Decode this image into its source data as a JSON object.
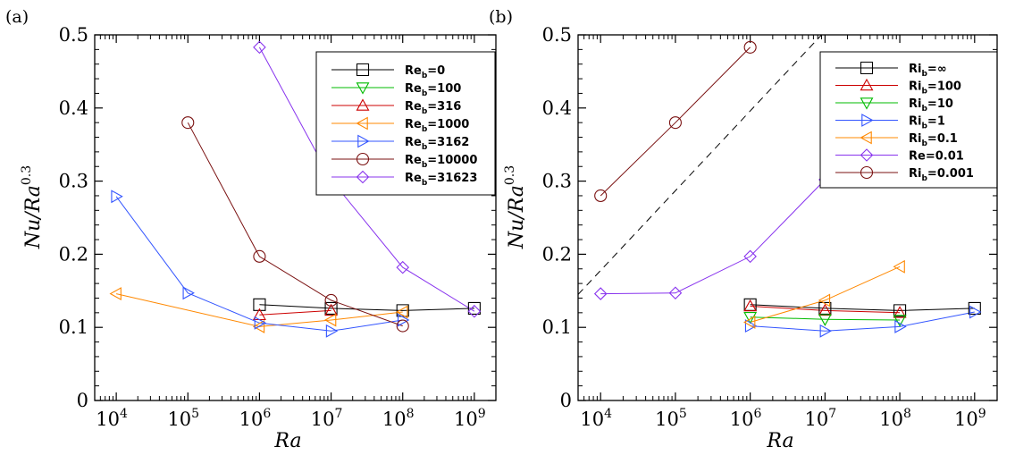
{
  "chart_data": [
    {
      "type": "line",
      "panel_label": "(a)",
      "xlabel": "Ra",
      "ylabel": {
        "base": "Nu/Ra",
        "exponent": "0.3"
      },
      "xscale": "log",
      "xlim": [
        5000,
        2000000000
      ],
      "ylim": [
        0,
        0.5
      ],
      "x_ticks": [
        {
          "base": "10",
          "exp": "4",
          "v": 10000
        },
        {
          "base": "10",
          "exp": "5",
          "v": 100000
        },
        {
          "base": "10",
          "exp": "6",
          "v": 1000000
        },
        {
          "base": "10",
          "exp": "7",
          "v": 10000000
        },
        {
          "base": "10",
          "exp": "8",
          "v": 100000000
        },
        {
          "base": "10",
          "exp": "9",
          "v": 1000000000
        }
      ],
      "y_ticks": [
        "0",
        "0.1",
        "0.2",
        "0.3",
        "0.4",
        "0.5"
      ],
      "legend_position": "top-right",
      "series": [
        {
          "name": "Re_b=0",
          "label_main": "Re",
          "label_sub": "b",
          "label_tail": "=0",
          "color": "#000000",
          "marker": "square",
          "x": [
            1000000,
            10000000,
            100000000,
            1000000000
          ],
          "y": [
            0.131,
            0.126,
            0.123,
            0.126
          ]
        },
        {
          "name": "Re_b=100",
          "label_main": "Re",
          "label_sub": "b",
          "label_tail": "=100",
          "color": "#00bb00",
          "marker": "triangle-down",
          "x": [],
          "y": []
        },
        {
          "name": "Re_b=316",
          "label_main": "Re",
          "label_sub": "b",
          "label_tail": "=316",
          "color": "#cc0000",
          "marker": "triangle-up",
          "x": [
            1000000,
            10000000
          ],
          "y": [
            0.117,
            0.123
          ]
        },
        {
          "name": "Re_b=1000",
          "label_main": "Re",
          "label_sub": "b",
          "label_tail": "=1000",
          "color": "#ff8800",
          "marker": "triangle-left",
          "x": [
            10000,
            1000000,
            10000000,
            100000000
          ],
          "y": [
            0.146,
            0.101,
            0.11,
            0.121
          ]
        },
        {
          "name": "Re_b=3162",
          "label_main": "Re",
          "label_sub": "b",
          "label_tail": "=3162",
          "color": "#3355ff",
          "marker": "triangle-right",
          "x": [
            10000,
            100000,
            1000000,
            10000000,
            100000000
          ],
          "y": [
            0.279,
            0.147,
            0.106,
            0.095,
            0.11
          ]
        },
        {
          "name": "Re_b=10000",
          "label_main": "Re",
          "label_sub": "b",
          "label_tail": "=10000",
          "color": "#7a1111",
          "marker": "circle",
          "x": [
            100000,
            1000000,
            10000000,
            100000000
          ],
          "y": [
            0.38,
            0.197,
            0.137,
            0.102
          ]
        },
        {
          "name": "Re_b=31623",
          "label_main": "Re",
          "label_sub": "b",
          "label_tail": "=31623",
          "color": "#8833ee",
          "marker": "diamond",
          "x": [
            1000000,
            10000000,
            100000000,
            1000000000
          ],
          "y": [
            0.483,
            0.302,
            0.182,
            0.122
          ]
        }
      ]
    },
    {
      "type": "line",
      "panel_label": "(b)",
      "xlabel": "Ra",
      "ylabel": {
        "base": "Nu/Ra",
        "exponent": "0.3"
      },
      "xscale": "log",
      "xlim": [
        5000,
        2000000000
      ],
      "ylim": [
        0,
        0.5
      ],
      "x_ticks": [
        {
          "base": "10",
          "exp": "4",
          "v": 10000
        },
        {
          "base": "10",
          "exp": "5",
          "v": 100000
        },
        {
          "base": "10",
          "exp": "6",
          "v": 1000000
        },
        {
          "base": "10",
          "exp": "7",
          "v": 10000000
        },
        {
          "base": "10",
          "exp": "8",
          "v": 100000000
        },
        {
          "base": "10",
          "exp": "9",
          "v": 1000000000
        }
      ],
      "y_ticks": [
        "0",
        "0.1",
        "0.2",
        "0.3",
        "0.4",
        "0.5"
      ],
      "legend_position": "top-right",
      "reference_line": {
        "style": "dashed",
        "x": [
          5000,
          10000000
        ],
        "y": [
          0.145,
          0.505
        ]
      },
      "series": [
        {
          "name": "Ri_b=∞",
          "label_main": "Ri",
          "label_sub": "b",
          "label_tail": "=∞",
          "color": "#000000",
          "marker": "square",
          "x": [
            1000000,
            10000000,
            100000000,
            1000000000
          ],
          "y": [
            0.131,
            0.126,
            0.123,
            0.126
          ]
        },
        {
          "name": "Ri_b=100",
          "label_main": "Ri",
          "label_sub": "b",
          "label_tail": "=100",
          "color": "#cc0000",
          "marker": "triangle-up",
          "x": [
            1000000,
            10000000,
            100000000
          ],
          "y": [
            0.129,
            0.123,
            0.12
          ]
        },
        {
          "name": "Ri_b=10",
          "label_main": "Ri",
          "label_sub": "b",
          "label_tail": "=10",
          "color": "#00bb00",
          "marker": "triangle-down",
          "x": [
            1000000,
            10000000,
            100000000
          ],
          "y": [
            0.114,
            0.111,
            0.11
          ]
        },
        {
          "name": "Ri_b=1",
          "label_main": "Ri",
          "label_sub": "b",
          "label_tail": "=1",
          "color": "#3355ff",
          "marker": "triangle-right",
          "x": [
            1000000,
            10000000,
            100000000,
            1000000000
          ],
          "y": [
            0.102,
            0.095,
            0.101,
            0.121
          ]
        },
        {
          "name": "Ri_b=0.1",
          "label_main": "Ri",
          "label_sub": "b",
          "label_tail": "=0.1",
          "color": "#ff8800",
          "marker": "triangle-left",
          "x": [
            1000000,
            10000000,
            100000000
          ],
          "y": [
            0.107,
            0.137,
            0.183
          ]
        },
        {
          "name": "Re=0.01",
          "label_main": "Re=0.01",
          "label_sub": "",
          "label_tail": "",
          "color": "#8833ee",
          "marker": "diamond",
          "x": [
            10000,
            100000,
            1000000,
            10000000
          ],
          "y": [
            0.146,
            0.147,
            0.197,
            0.302
          ]
        },
        {
          "name": "Ri_b=0.001",
          "label_main": "Ri",
          "label_sub": "b",
          "label_tail": "=0.001",
          "color": "#7a1111",
          "marker": "circle",
          "x": [
            10000,
            100000,
            1000000
          ],
          "y": [
            0.28,
            0.38,
            0.483
          ]
        }
      ]
    }
  ]
}
